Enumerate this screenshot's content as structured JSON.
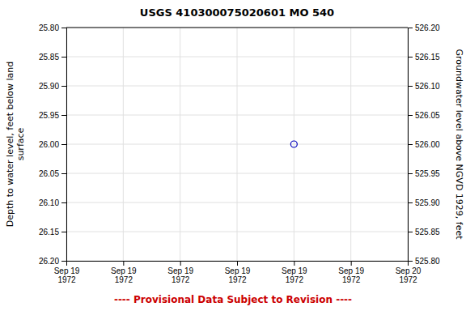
{
  "chart_data": {
    "type": "scatter",
    "title": "USGS 410300075020601 MO   540",
    "y_label": "Depth to water level, feet below land\nsurface",
    "y2_label": "Groundwater level above NGVD 1929, feet",
    "categories": [
      "Sep 19\n1972",
      "Sep 19\n1972",
      "Sep 19\n1972",
      "Sep 19\n1972",
      "Sep 19\n1972",
      "Sep 19\n1972",
      "Sep 20\n1972"
    ],
    "values": [
      null,
      null,
      null,
      null,
      26.0,
      null,
      null
    ],
    "color": "#0000bb",
    "marker": "circle",
    "ylim": [
      26.2,
      25.8
    ],
    "yticks": [
      {
        "value": 25.8,
        "label": "25.80"
      },
      25.85,
      {
        "value": 25.9,
        "label": "25.90"
      },
      25.95,
      {
        "value": 26.0,
        "label": "26.00"
      },
      26.05,
      {
        "value": 26.1,
        "label": "26.10"
      },
      26.15,
      {
        "value": 26.2,
        "label": "26.20"
      }
    ],
    "y2lim": [
      525.8,
      526.2
    ],
    "y2ticks": [
      {
        "value": 526.2,
        "label": "526.20"
      },
      526.15,
      {
        "value": 526.1,
        "label": "526.10"
      },
      526.05,
      {
        "value": 526.0,
        "label": "526.00"
      },
      525.95,
      {
        "value": 525.9,
        "label": "525.90"
      },
      525.85,
      {
        "value": 525.8,
        "label": "525.80"
      }
    ],
    "grid": true,
    "annotations": [
      {
        "text": "---- Provisional Data Subject to Revision ----",
        "color": "#cc0000"
      }
    ]
  }
}
